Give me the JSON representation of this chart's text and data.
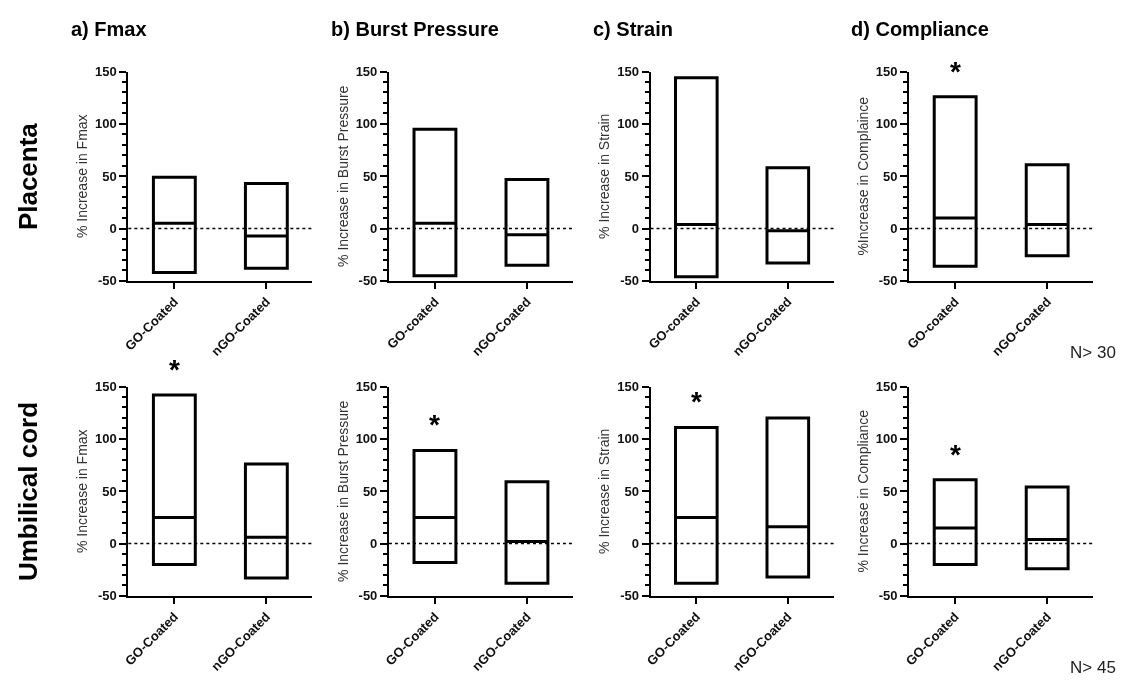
{
  "chart_data": [
    {
      "type": "box",
      "title": "a) Fmax",
      "ylabel": "% Increase in Fmax",
      "categories": [
        "GO-Coated",
        "nGO-Coated"
      ],
      "boxes": [
        {
          "low": -42,
          "q1": -42,
          "median": 5,
          "q3": 49,
          "high": 49
        },
        {
          "low": -38,
          "q1": -38,
          "median": -7,
          "q3": 43,
          "high": 43
        }
      ],
      "ylim": [
        -50,
        150
      ],
      "yticks": [
        -50,
        {
          "value": -40,
          "label": null
        },
        {
          "value": -30,
          "label": null
        },
        {
          "value": -20,
          "label": null
        },
        {
          "value": -10,
          "label": null
        },
        0,
        {
          "value": 10,
          "label": null
        },
        {
          "value": 20,
          "label": null
        },
        {
          "value": 30,
          "label": null
        },
        {
          "value": 40,
          "label": null
        },
        50,
        {
          "value": 60,
          "label": null
        },
        {
          "value": 70,
          "label": null
        },
        {
          "value": 80,
          "label": null
        },
        {
          "value": 90,
          "label": null
        },
        100,
        {
          "value": 110,
          "label": null
        },
        {
          "value": 120,
          "label": null
        },
        {
          "value": 130,
          "label": null
        },
        {
          "value": 140,
          "label": null
        },
        150
      ],
      "ref_lines": [
        {
          "axis": "y",
          "value": 0,
          "line_style": "dotted",
          "color": "#000000"
        }
      ],
      "annotations": [
        "Placenta"
      ]
    },
    {
      "type": "box",
      "title": "b) Burst Pressure",
      "ylabel": "% Increase in Burst Pressure",
      "categories": [
        "GO-coated",
        "nGO-Coated"
      ],
      "boxes": [
        {
          "low": -45,
          "q1": -45,
          "median": 5,
          "q3": 95,
          "high": 95
        },
        {
          "low": -35,
          "q1": -35,
          "median": -6,
          "q3": 47,
          "high": 47
        }
      ],
      "ylim": [
        -50,
        150
      ],
      "yticks": [
        -50,
        {
          "value": -40,
          "label": null
        },
        {
          "value": -30,
          "label": null
        },
        {
          "value": -20,
          "label": null
        },
        {
          "value": -10,
          "label": null
        },
        0,
        {
          "value": 10,
          "label": null
        },
        {
          "value": 20,
          "label": null
        },
        {
          "value": 30,
          "label": null
        },
        {
          "value": 40,
          "label": null
        },
        50,
        {
          "value": 60,
          "label": null
        },
        {
          "value": 70,
          "label": null
        },
        {
          "value": 80,
          "label": null
        },
        {
          "value": 90,
          "label": null
        },
        100,
        {
          "value": 110,
          "label": null
        },
        {
          "value": 120,
          "label": null
        },
        {
          "value": 130,
          "label": null
        },
        {
          "value": 140,
          "label": null
        },
        150
      ],
      "ref_lines": [
        {
          "axis": "y",
          "value": 0,
          "line_style": "dotted",
          "color": "#000000"
        }
      ]
    },
    {
      "type": "box",
      "title": "c) Strain",
      "ylabel": "% Increase in Strain",
      "categories": [
        "GO-coated",
        "nGO-Coated"
      ],
      "boxes": [
        {
          "low": -46,
          "q1": -46,
          "median": 4,
          "q3": 144,
          "high": 144
        },
        {
          "low": -33,
          "q1": -33,
          "median": -2,
          "q3": 58,
          "high": 58
        }
      ],
      "ylim": [
        -50,
        150
      ],
      "yticks": [
        -50,
        {
          "value": -40,
          "label": null
        },
        {
          "value": -30,
          "label": null
        },
        {
          "value": -20,
          "label": null
        },
        {
          "value": -10,
          "label": null
        },
        0,
        {
          "value": 10,
          "label": null
        },
        {
          "value": 20,
          "label": null
        },
        {
          "value": 30,
          "label": null
        },
        {
          "value": 40,
          "label": null
        },
        50,
        {
          "value": 60,
          "label": null
        },
        {
          "value": 70,
          "label": null
        },
        {
          "value": 80,
          "label": null
        },
        {
          "value": 90,
          "label": null
        },
        100,
        {
          "value": 110,
          "label": null
        },
        {
          "value": 120,
          "label": null
        },
        {
          "value": 130,
          "label": null
        },
        {
          "value": 140,
          "label": null
        },
        150
      ],
      "ref_lines": [
        {
          "axis": "y",
          "value": 0,
          "line_style": "dotted",
          "color": "#000000"
        }
      ]
    },
    {
      "type": "box",
      "title": "d) Compliance",
      "ylabel": "%Increase in Complaince",
      "categories": [
        "GO-coated",
        "nGO-Coated"
      ],
      "boxes": [
        {
          "low": -36,
          "q1": -36,
          "median": 10,
          "q3": 126,
          "high": 126
        },
        {
          "low": -26,
          "q1": -26,
          "median": 4,
          "q3": 61,
          "high": 61
        }
      ],
      "ylim": [
        -50,
        150
      ],
      "yticks": [
        -50,
        {
          "value": -40,
          "label": null
        },
        {
          "value": -30,
          "label": null
        },
        {
          "value": -20,
          "label": null
        },
        {
          "value": -10,
          "label": null
        },
        0,
        {
          "value": 10,
          "label": null
        },
        {
          "value": 20,
          "label": null
        },
        {
          "value": 30,
          "label": null
        },
        {
          "value": 40,
          "label": null
        },
        50,
        {
          "value": 60,
          "label": null
        },
        {
          "value": 70,
          "label": null
        },
        {
          "value": 80,
          "label": null
        },
        {
          "value": 90,
          "label": null
        },
        100,
        {
          "value": 110,
          "label": null
        },
        {
          "value": 120,
          "label": null
        },
        {
          "value": 130,
          "label": null
        },
        {
          "value": 140,
          "label": null
        },
        150
      ],
      "ref_lines": [
        {
          "axis": "y",
          "value": 0,
          "line_style": "dotted",
          "color": "#000000"
        }
      ],
      "annotations": [
        "*",
        "N> 30"
      ]
    },
    {
      "type": "box",
      "ylabel": "% Increase in Fmax",
      "categories": [
        "GO-Coated",
        "nGO-Coated"
      ],
      "boxes": [
        {
          "low": -20,
          "q1": -20,
          "median": 25,
          "q3": 142,
          "high": 142
        },
        {
          "low": -33,
          "q1": -33,
          "median": 6,
          "q3": 76,
          "high": 76
        }
      ],
      "ylim": [
        -50,
        150
      ],
      "yticks": [
        -50,
        {
          "value": -40,
          "label": null
        },
        {
          "value": -30,
          "label": null
        },
        {
          "value": -20,
          "label": null
        },
        {
          "value": -10,
          "label": null
        },
        0,
        {
          "value": 10,
          "label": null
        },
        {
          "value": 20,
          "label": null
        },
        {
          "value": 30,
          "label": null
        },
        {
          "value": 40,
          "label": null
        },
        50,
        {
          "value": 60,
          "label": null
        },
        {
          "value": 70,
          "label": null
        },
        {
          "value": 80,
          "label": null
        },
        {
          "value": 90,
          "label": null
        },
        100,
        {
          "value": 110,
          "label": null
        },
        {
          "value": 120,
          "label": null
        },
        {
          "value": 130,
          "label": null
        },
        {
          "value": 140,
          "label": null
        },
        150
      ],
      "ref_lines": [
        {
          "axis": "y",
          "value": 0,
          "line_style": "dotted",
          "color": "#000000"
        }
      ],
      "annotations": [
        "Umbilical cord",
        "*"
      ]
    },
    {
      "type": "box",
      "ylabel": "% Increase in Burst Pressure",
      "categories": [
        "GO-Coated",
        "nGO-Coated"
      ],
      "boxes": [
        {
          "low": -18,
          "q1": -18,
          "median": 25,
          "q3": 89,
          "high": 89
        },
        {
          "low": -38,
          "q1": -38,
          "median": 2,
          "q3": 59,
          "high": 59
        }
      ],
      "ylim": [
        -50,
        150
      ],
      "yticks": [
        -50,
        {
          "value": -40,
          "label": null
        },
        {
          "value": -30,
          "label": null
        },
        {
          "value": -20,
          "label": null
        },
        {
          "value": -10,
          "label": null
        },
        0,
        {
          "value": 10,
          "label": null
        },
        {
          "value": 20,
          "label": null
        },
        {
          "value": 30,
          "label": null
        },
        {
          "value": 40,
          "label": null
        },
        50,
        {
          "value": 60,
          "label": null
        },
        {
          "value": 70,
          "label": null
        },
        {
          "value": 80,
          "label": null
        },
        {
          "value": 90,
          "label": null
        },
        100,
        {
          "value": 110,
          "label": null
        },
        {
          "value": 120,
          "label": null
        },
        {
          "value": 130,
          "label": null
        },
        {
          "value": 140,
          "label": null
        },
        150
      ],
      "ref_lines": [
        {
          "axis": "y",
          "value": 0,
          "line_style": "dotted",
          "color": "#000000"
        }
      ],
      "annotations": [
        "*"
      ]
    },
    {
      "type": "box",
      "ylabel": "% Increase in Strain",
      "categories": [
        "GO-Coated",
        "nGO-Coated"
      ],
      "boxes": [
        {
          "low": -38,
          "q1": -38,
          "median": 25,
          "q3": 111,
          "high": 111
        },
        {
          "low": -32,
          "q1": -32,
          "median": 16,
          "q3": 120,
          "high": 120
        }
      ],
      "ylim": [
        -50,
        150
      ],
      "yticks": [
        -50,
        {
          "value": -40,
          "label": null
        },
        {
          "value": -30,
          "label": null
        },
        {
          "value": -20,
          "label": null
        },
        {
          "value": -10,
          "label": null
        },
        0,
        {
          "value": 10,
          "label": null
        },
        {
          "value": 20,
          "label": null
        },
        {
          "value": 30,
          "label": null
        },
        {
          "value": 40,
          "label": null
        },
        50,
        {
          "value": 60,
          "label": null
        },
        {
          "value": 70,
          "label": null
        },
        {
          "value": 80,
          "label": null
        },
        {
          "value": 90,
          "label": null
        },
        100,
        {
          "value": 110,
          "label": null
        },
        {
          "value": 120,
          "label": null
        },
        {
          "value": 130,
          "label": null
        },
        {
          "value": 140,
          "label": null
        },
        150
      ],
      "ref_lines": [
        {
          "axis": "y",
          "value": 0,
          "line_style": "dotted",
          "color": "#000000"
        }
      ],
      "annotations": [
        "*"
      ]
    },
    {
      "type": "box",
      "ylabel": "% Increase in Compliance",
      "categories": [
        "GO-Coated",
        "nGO-Coated"
      ],
      "boxes": [
        {
          "low": -20,
          "q1": -20,
          "median": 15,
          "q3": 61,
          "high": 61
        },
        {
          "low": -24,
          "q1": -24,
          "median": 4,
          "q3": 54,
          "high": 54
        }
      ],
      "ylim": [
        -50,
        150
      ],
      "yticks": [
        -50,
        {
          "value": -40,
          "label": null
        },
        {
          "value": -30,
          "label": null
        },
        {
          "value": -20,
          "label": null
        },
        {
          "value": -10,
          "label": null
        },
        0,
        {
          "value": 10,
          "label": null
        },
        {
          "value": 20,
          "label": null
        },
        {
          "value": 30,
          "label": null
        },
        {
          "value": 40,
          "label": null
        },
        50,
        {
          "value": 60,
          "label": null
        },
        {
          "value": 70,
          "label": null
        },
        {
          "value": 80,
          "label": null
        },
        {
          "value": 90,
          "label": null
        },
        100,
        {
          "value": 110,
          "label": null
        },
        {
          "value": 120,
          "label": null
        },
        {
          "value": 130,
          "label": null
        },
        {
          "value": 140,
          "label": null
        },
        150
      ],
      "ref_lines": [
        {
          "axis": "y",
          "value": 0,
          "line_style": "dotted",
          "color": "#000000"
        }
      ],
      "annotations": [
        "*",
        "N> 45"
      ]
    }
  ]
}
